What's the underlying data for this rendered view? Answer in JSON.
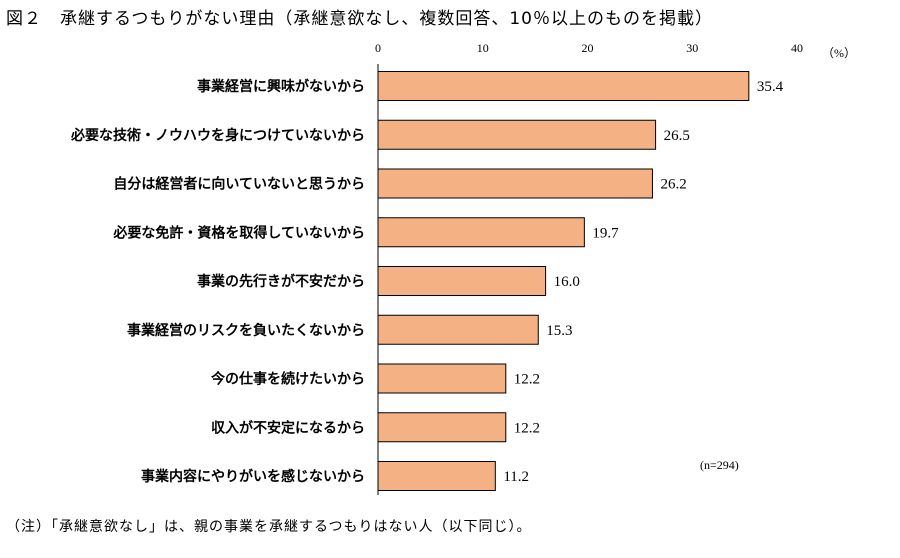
{
  "figure": {
    "title": "図２　承継するつもりがない理由（承継意欲なし、複数回答、10％以上のものを掲載）",
    "note": "（注）「承継意欲なし」は、親の事業を承継するつもりはない人（以下同じ）。"
  },
  "chart_data": {
    "type": "bar",
    "orientation": "horizontal",
    "title": "承継するつもりがない理由（承継意欲なし、複数回答、10％以上のものを掲載）",
    "unit": "（%）",
    "sample_label": "(n=294)",
    "xlim": [
      0,
      40
    ],
    "ticks": [
      "0",
      "10",
      "20",
      "30",
      "40"
    ],
    "tick_values": [
      0,
      10,
      20,
      30,
      40
    ],
    "bar_color": "#F4B183",
    "categories": [
      "事業経営に興味がないから",
      "必要な技術・ノウハウを身につけていないから",
      "自分は経営者に向いていないと思うから",
      "必要な免許・資格を取得していないから",
      "事業の先行きが不安だから",
      "事業経営のリスクを負いたくないから",
      "今の仕事を続けたいから",
      "収入が不安定になるから",
      "事業内容にやりがいを感じないから"
    ],
    "values": [
      35.4,
      26.5,
      26.2,
      19.7,
      16.0,
      15.3,
      12.2,
      12.2,
      11.2
    ],
    "value_labels": [
      "35.4",
      "26.5",
      "26.2",
      "19.7",
      "16.0",
      "15.3",
      "12.2",
      "12.2",
      "11.2"
    ]
  }
}
